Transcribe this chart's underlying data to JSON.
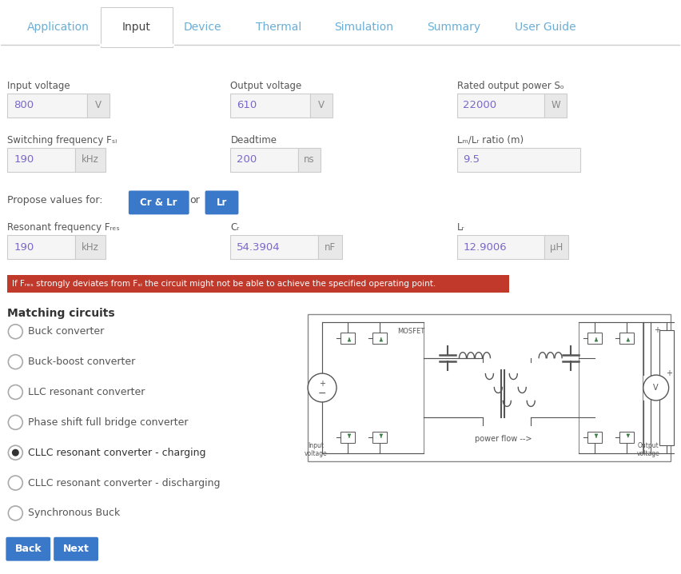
{
  "bg_color": "#ffffff",
  "tab_line_color": "#cccccc",
  "tabs": [
    "Application",
    "Input",
    "Device",
    "Thermal",
    "Simulation",
    "Summary",
    "User Guide"
  ],
  "active_tab": "Input",
  "active_tab_color": "#444444",
  "inactive_tab_color": "#6aaed6",
  "field_bg": "#f5f5f5",
  "field_border": "#cccccc",
  "unit_bg": "#e8e8e8",
  "field_value_color": "#7b68c8",
  "field_label_color": "#555555",
  "unit_color": "#888888",
  "btn_color": "#3a78c9",
  "btn_text_color": "#ffffff",
  "warning_color": "#c0392b",
  "warning_text_color": "#ffffff",
  "circuit_label_color": "#555555",
  "radio_border": "#aaaaaa",
  "radio_fill_selected": "#333333",
  "matching_title_color": "#333333",
  "propose_label": "Propose values for:",
  "btn1_label": "Cr & Lr",
  "btn2_label": "Lr",
  "warning_text": "If Fres strongly deviates from Fsw the circuit might not be able to achieve the specified operating point.",
  "matching_title": "Matching circuits",
  "circuits": [
    {
      "label": "Buck converter",
      "selected": false
    },
    {
      "label": "Buck-boost converter",
      "selected": false
    },
    {
      "label": "LLC resonant converter",
      "selected": false
    },
    {
      "label": "Phase shift full bridge converter",
      "selected": false
    },
    {
      "label": "CLLC resonant converter - charging",
      "selected": true
    },
    {
      "label": "CLLC resonant converter - discharging",
      "selected": false
    },
    {
      "label": "Synchronous Buck",
      "selected": false
    }
  ],
  "back_btn_label": "Back",
  "next_btn_label": "Next",
  "mosfet_color": "#555555",
  "green_arrow_color": "#3a7d44",
  "schematic_border": "#888888"
}
